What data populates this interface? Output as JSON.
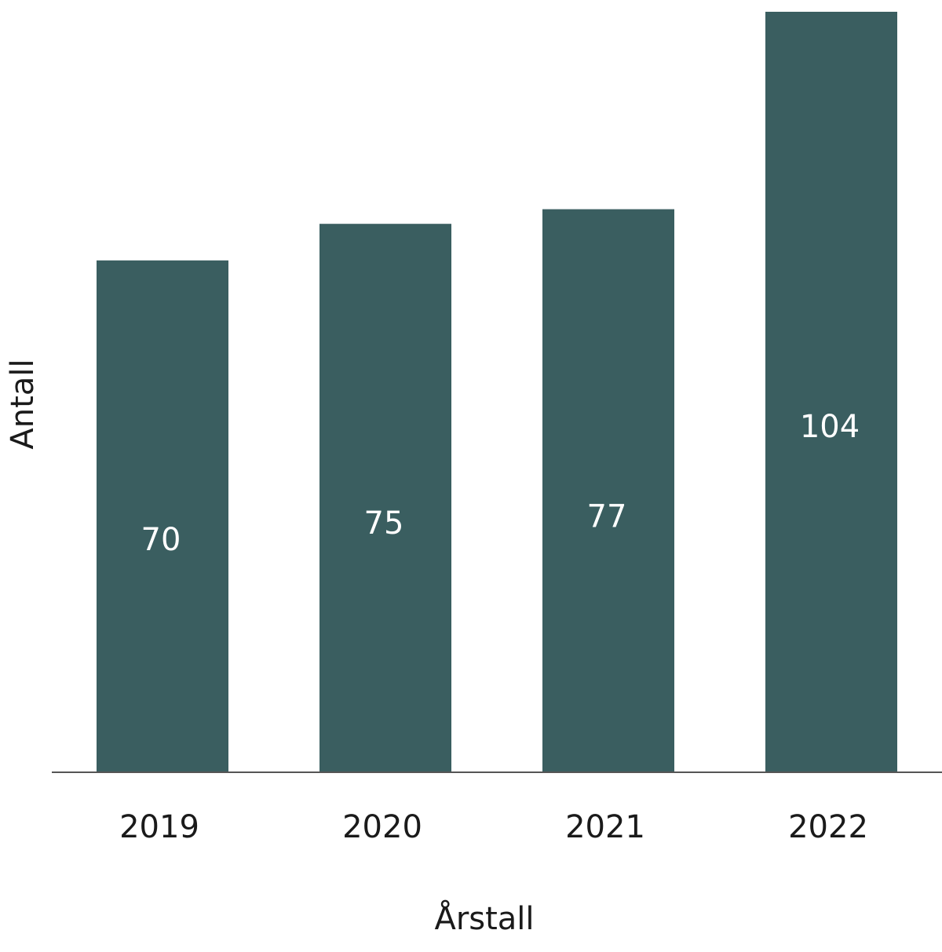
{
  "chart_data": {
    "type": "bar",
    "categories": [
      "2019",
      "2020",
      "2021",
      "2022"
    ],
    "values": [
      70,
      75,
      77,
      104
    ],
    "data_labels": [
      "70",
      "75",
      "77",
      "104"
    ],
    "xlabel": "Årstall",
    "ylabel": "Antall",
    "ylim": [
      0,
      104
    ],
    "grid": false,
    "legend": "none",
    "bar_color": "#3a5e60",
    "axis_color": "#555555"
  }
}
